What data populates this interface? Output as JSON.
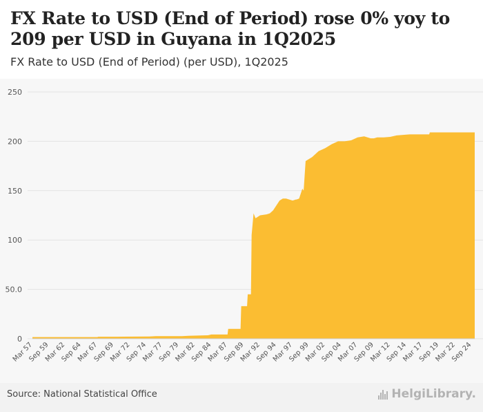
{
  "header": {
    "title": "FX Rate to USD (End of Period) rose 0% yoy to 209 per USD in Guyana in 1Q2025",
    "subtitle": "FX Rate to USD (End of Period) (per USD), 1Q2025"
  },
  "footer": {
    "source": "Source: National Statistical Office",
    "logo": "HelgiLibrary."
  },
  "colors": {
    "fill": "#fbbd32",
    "grid": "#e3e3e3",
    "axis_text": "#555555"
  },
  "chart_data": {
    "type": "area",
    "title": "FX Rate to USD (End of Period) (per USD), 1Q2025",
    "xlabel": "",
    "ylabel": "",
    "ylim": [
      0,
      250
    ],
    "yticks": [
      0,
      50,
      100,
      150,
      200,
      250
    ],
    "ytick_labels": [
      "0",
      "50.0",
      "100",
      "150",
      "200",
      "250"
    ],
    "xlim": [
      1957.0,
      2025.0
    ],
    "xtick_labels": [
      "Mar 57",
      "Sep 59",
      "Mar 62",
      "Sep 64",
      "Mar 67",
      "Sep 69",
      "Mar 72",
      "Sep 74",
      "Mar 77",
      "Sep 79",
      "Mar 82",
      "Sep 84",
      "Mar 87",
      "Sep 89",
      "Mar 92",
      "Sep 94",
      "Mar 97",
      "Sep 99",
      "Mar 02",
      "Sep 04",
      "Mar 07",
      "Sep 09",
      "Mar 12",
      "Sep 14",
      "Mar 17",
      "Sep 19",
      "Mar 22",
      "Sep 24"
    ],
    "xtick_positions": [
      1957.0,
      1959.5,
      1962.0,
      1964.5,
      1967.0,
      1969.5,
      1972.0,
      1974.5,
      1977.0,
      1979.5,
      1982.0,
      1984.5,
      1987.0,
      1989.5,
      1992.0,
      1994.5,
      1997.0,
      1999.5,
      2002.0,
      2004.5,
      2007.0,
      2009.5,
      2012.0,
      2014.5,
      2017.0,
      2019.5,
      2022.0,
      2024.5
    ],
    "series": [
      {
        "name": "FX Rate to USD (End of Period)",
        "x": [
          1957.0,
          1967.0,
          1967.1,
          1970.0,
          1971.0,
          1975.0,
          1976.0,
          1980.0,
          1981.0,
          1984.0,
          1984.5,
          1985.0,
          1987.0,
          1987.1,
          1989.0,
          1989.1,
          1990.0,
          1990.1,
          1990.6,
          1990.7,
          1991.0,
          1991.3,
          1992.0,
          1993.0,
          1993.5,
          1994.0,
          1995.0,
          1995.5,
          1996.0,
          1997.0,
          1997.5,
          1997.6,
          1998.0,
          1998.5,
          1998.7,
          1999.0,
          2000.0,
          2001.0,
          2002.0,
          2003.0,
          2004.0,
          2005.0,
          2006.0,
          2007.0,
          2008.0,
          2009.0,
          2009.5,
          2010.0,
          2011.0,
          2012.0,
          2013.0,
          2014.0,
          2015.0,
          2016.0,
          2017.0,
          2018.0,
          2018.1,
          2019.0,
          2020.0,
          2021.0,
          2022.0,
          2023.0,
          2024.0,
          2025.0
        ],
        "values": [
          1.7,
          1.7,
          2.0,
          2.0,
          2.1,
          2.3,
          2.6,
          2.6,
          3.0,
          3.5,
          4.3,
          4.3,
          4.3,
          10.0,
          10.0,
          33.0,
          33.0,
          45.0,
          45.0,
          105.0,
          127.0,
          122.0,
          125.0,
          126.0,
          127.0,
          130.0,
          140.0,
          142.0,
          142.0,
          140.0,
          141.0,
          141.0,
          142.0,
          152.0,
          150.0,
          180.0,
          184.0,
          190.0,
          193.0,
          197.0,
          200.0,
          200.0,
          201.0,
          204.0,
          205.0,
          203.0,
          203.0,
          204.0,
          204.0,
          204.5,
          206.0,
          206.5,
          207.0,
          207.0,
          207.0,
          207.0,
          209.0,
          209.0,
          209.0,
          209.0,
          209.0,
          209.0,
          209.0,
          209.0
        ]
      }
    ]
  }
}
